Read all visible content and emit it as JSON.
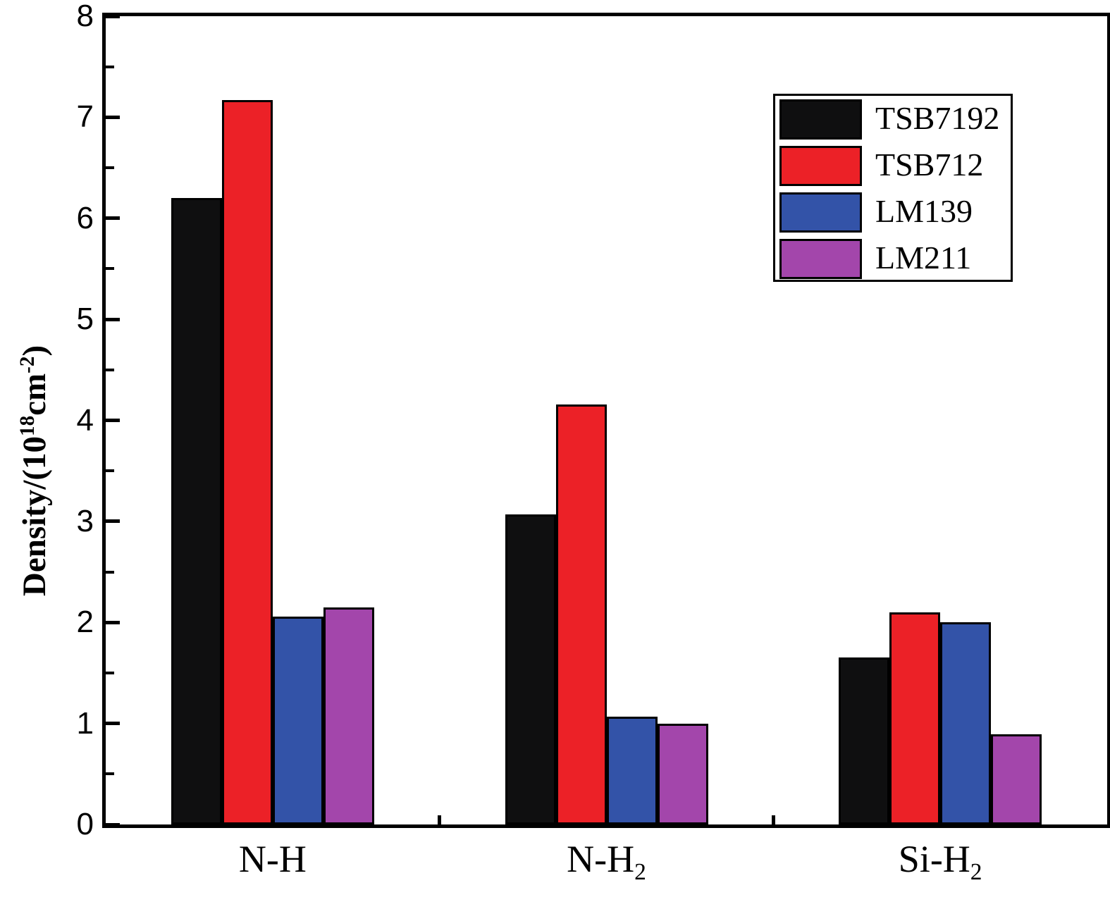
{
  "chart_data": {
    "type": "bar",
    "title": "",
    "xlabel": "",
    "ylabel": {
      "text": "Density/(10^18 cm^-2)",
      "p1": "Density/(10",
      "sup1": "18",
      "p2": "cm",
      "sup2": "-2",
      "p3": ")"
    },
    "ylim": [
      0,
      8
    ],
    "y_major_ticks": [
      0,
      1,
      2,
      3,
      4,
      5,
      6,
      7,
      8
    ],
    "y_minor_step": 0.5,
    "grid": false,
    "legend_position": "top-right",
    "categories": [
      {
        "base": "N-H",
        "sub": ""
      },
      {
        "base": "N-H",
        "sub": "2"
      },
      {
        "base": "Si-H",
        "sub": "2"
      }
    ],
    "series": [
      {
        "name": "TSB7192",
        "color": "#0f0f10",
        "values": [
          6.2,
          3.07,
          1.65
        ]
      },
      {
        "name": "TSB712",
        "color": "#ec2127",
        "values": [
          7.17,
          4.16,
          2.1
        ]
      },
      {
        "name": "LM139",
        "color": "#3353a8",
        "values": [
          2.06,
          1.07,
          2.0
        ]
      },
      {
        "name": "LM211",
        "color": "#a346ab",
        "values": [
          2.15,
          1.0,
          0.89
        ]
      }
    ],
    "colors": {
      "frame": "#000000",
      "background": "#ffffff"
    }
  }
}
